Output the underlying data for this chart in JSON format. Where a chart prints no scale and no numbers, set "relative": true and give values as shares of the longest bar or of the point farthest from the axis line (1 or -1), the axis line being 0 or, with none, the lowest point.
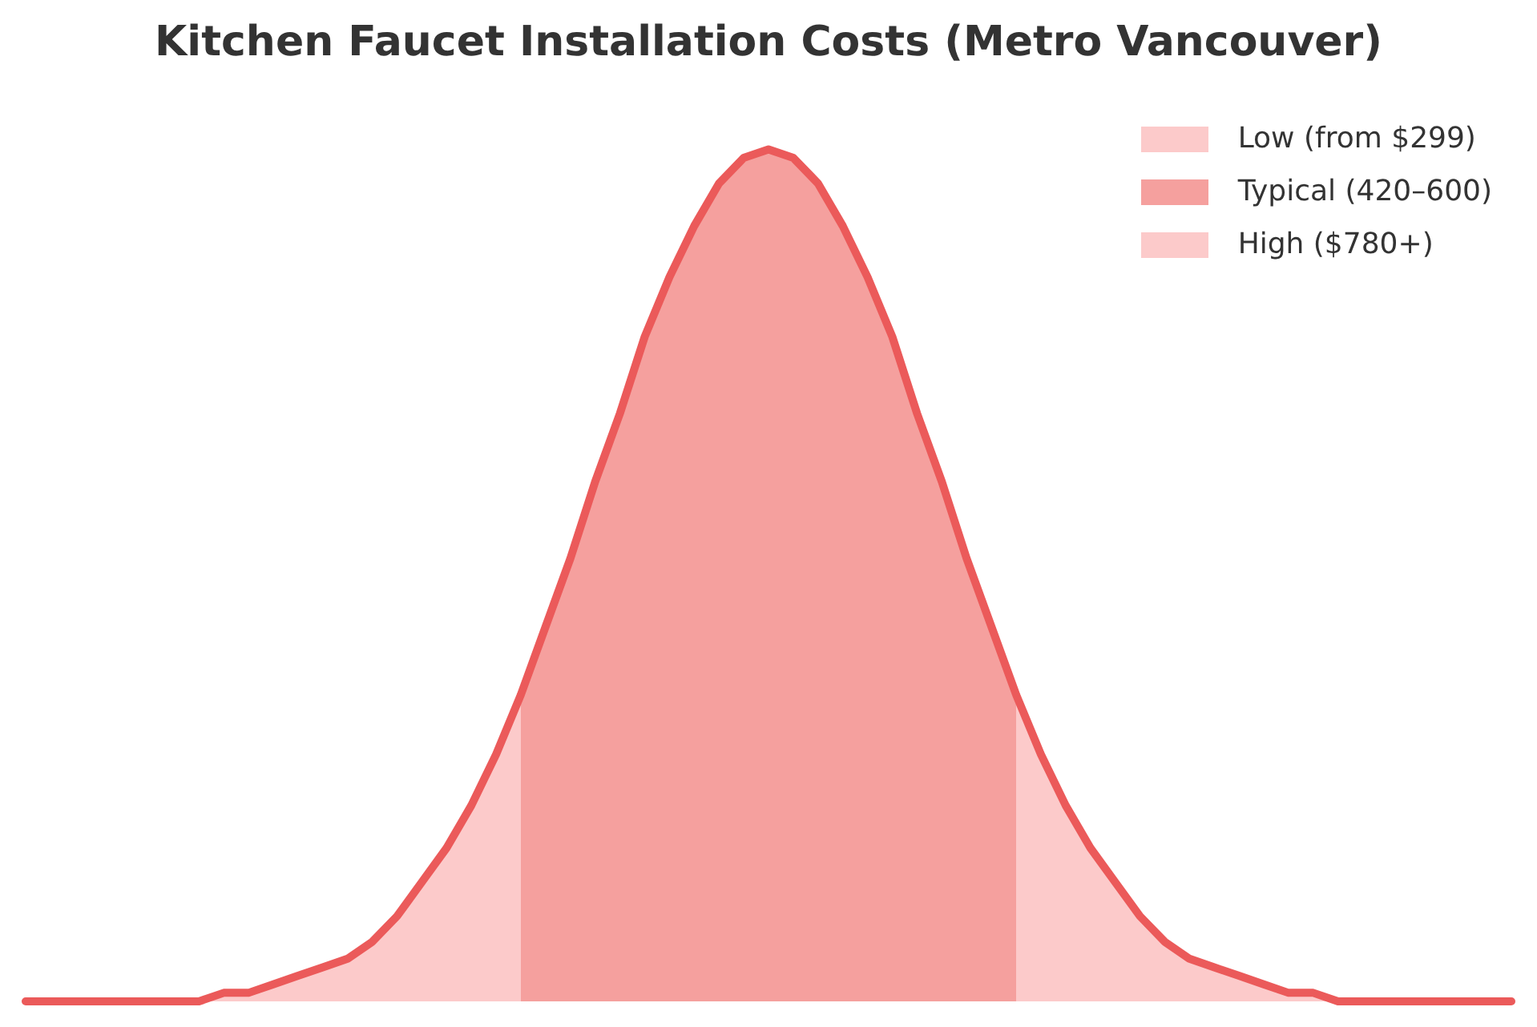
{
  "chart_data": {
    "type": "area",
    "title": "Kitchen Faucet Installation Costs (Metro Vancouver)",
    "relative": true,
    "legend": "top right",
    "categories": [
      null,
      null,
      null,
      null,
      null,
      null,
      null,
      null,
      null,
      null,
      null,
      null,
      null,
      null,
      null,
      null,
      null,
      null,
      null,
      null,
      null,
      null,
      null,
      null,
      null,
      null,
      null,
      null,
      null,
      null,
      null,
      null,
      null,
      null,
      null,
      null,
      null,
      null,
      null,
      null,
      null,
      null,
      null,
      null,
      null,
      null,
      null,
      null,
      null,
      null,
      null,
      null,
      null,
      null,
      null,
      null,
      null,
      null,
      null,
      null,
      null
    ],
    "series": [
      {
        "name": "Low (from $299)",
        "color": "#fccaca",
        "values": [
          0,
          0,
          0,
          0,
          0,
          0,
          0,
          0,
          0.01,
          0.01,
          0.02,
          0.03,
          0.04,
          0.05,
          0.07,
          0.1,
          0.14,
          0.18,
          0.23,
          0.29,
          0.36,
          null,
          null,
          null,
          null,
          null,
          null,
          null,
          null,
          null,
          null,
          null,
          null,
          null,
          null,
          null,
          null,
          null,
          null,
          null,
          null,
          null,
          null,
          null,
          null,
          null,
          null,
          null,
          null,
          null,
          null,
          null,
          null,
          null,
          null,
          null,
          null,
          null,
          null,
          null,
          null
        ]
      },
      {
        "name": "Typical (420–600)",
        "color": "#f5a09e",
        "values": [
          null,
          null,
          null,
          null,
          null,
          null,
          null,
          null,
          null,
          null,
          null,
          null,
          null,
          null,
          null,
          null,
          null,
          null,
          null,
          null,
          0.36,
          0.44,
          0.52,
          0.61,
          0.69,
          0.78,
          0.85,
          0.91,
          0.96,
          0.99,
          1,
          0.99,
          0.96,
          0.91,
          0.85,
          0.78,
          0.69,
          0.61,
          0.52,
          0.44,
          0.36,
          null,
          null,
          null,
          null,
          null,
          null,
          null,
          null,
          null,
          null,
          null,
          null,
          null,
          null,
          null,
          null,
          null,
          null,
          null,
          null
        ]
      },
      {
        "name": "High ($780+)",
        "color": "#fccaca",
        "values": [
          null,
          null,
          null,
          null,
          null,
          null,
          null,
          null,
          null,
          null,
          null,
          null,
          null,
          null,
          null,
          null,
          null,
          null,
          null,
          null,
          null,
          null,
          null,
          null,
          null,
          null,
          null,
          null,
          null,
          null,
          null,
          null,
          null,
          null,
          null,
          null,
          null,
          null,
          null,
          null,
          0.36,
          0.29,
          0.23,
          0.18,
          0.14,
          0.1,
          0.07,
          0.05,
          0.04,
          0.03,
          0.02,
          0.01,
          0.01,
          0,
          0,
          0,
          0,
          0,
          0,
          0,
          0
        ]
      },
      {
        "type": "line",
        "color": "#eb5a5a",
        "values": [
          0,
          0,
          0,
          0,
          0,
          0,
          0,
          0,
          0.01,
          0.01,
          0.02,
          0.03,
          0.04,
          0.05,
          0.07,
          0.1,
          0.14,
          0.18,
          0.23,
          0.29,
          0.36,
          0.44,
          0.52,
          0.61,
          0.69,
          0.78,
          0.85,
          0.91,
          0.96,
          0.99,
          1,
          0.99,
          0.96,
          0.91,
          0.85,
          0.78,
          0.69,
          0.61,
          0.52,
          0.44,
          0.36,
          0.29,
          0.23,
          0.18,
          0.14,
          0.1,
          0.07,
          0.05,
          0.04,
          0.03,
          0.02,
          0.01,
          0.01,
          0,
          0,
          0,
          0,
          0,
          0,
          0,
          0
        ]
      }
    ]
  }
}
